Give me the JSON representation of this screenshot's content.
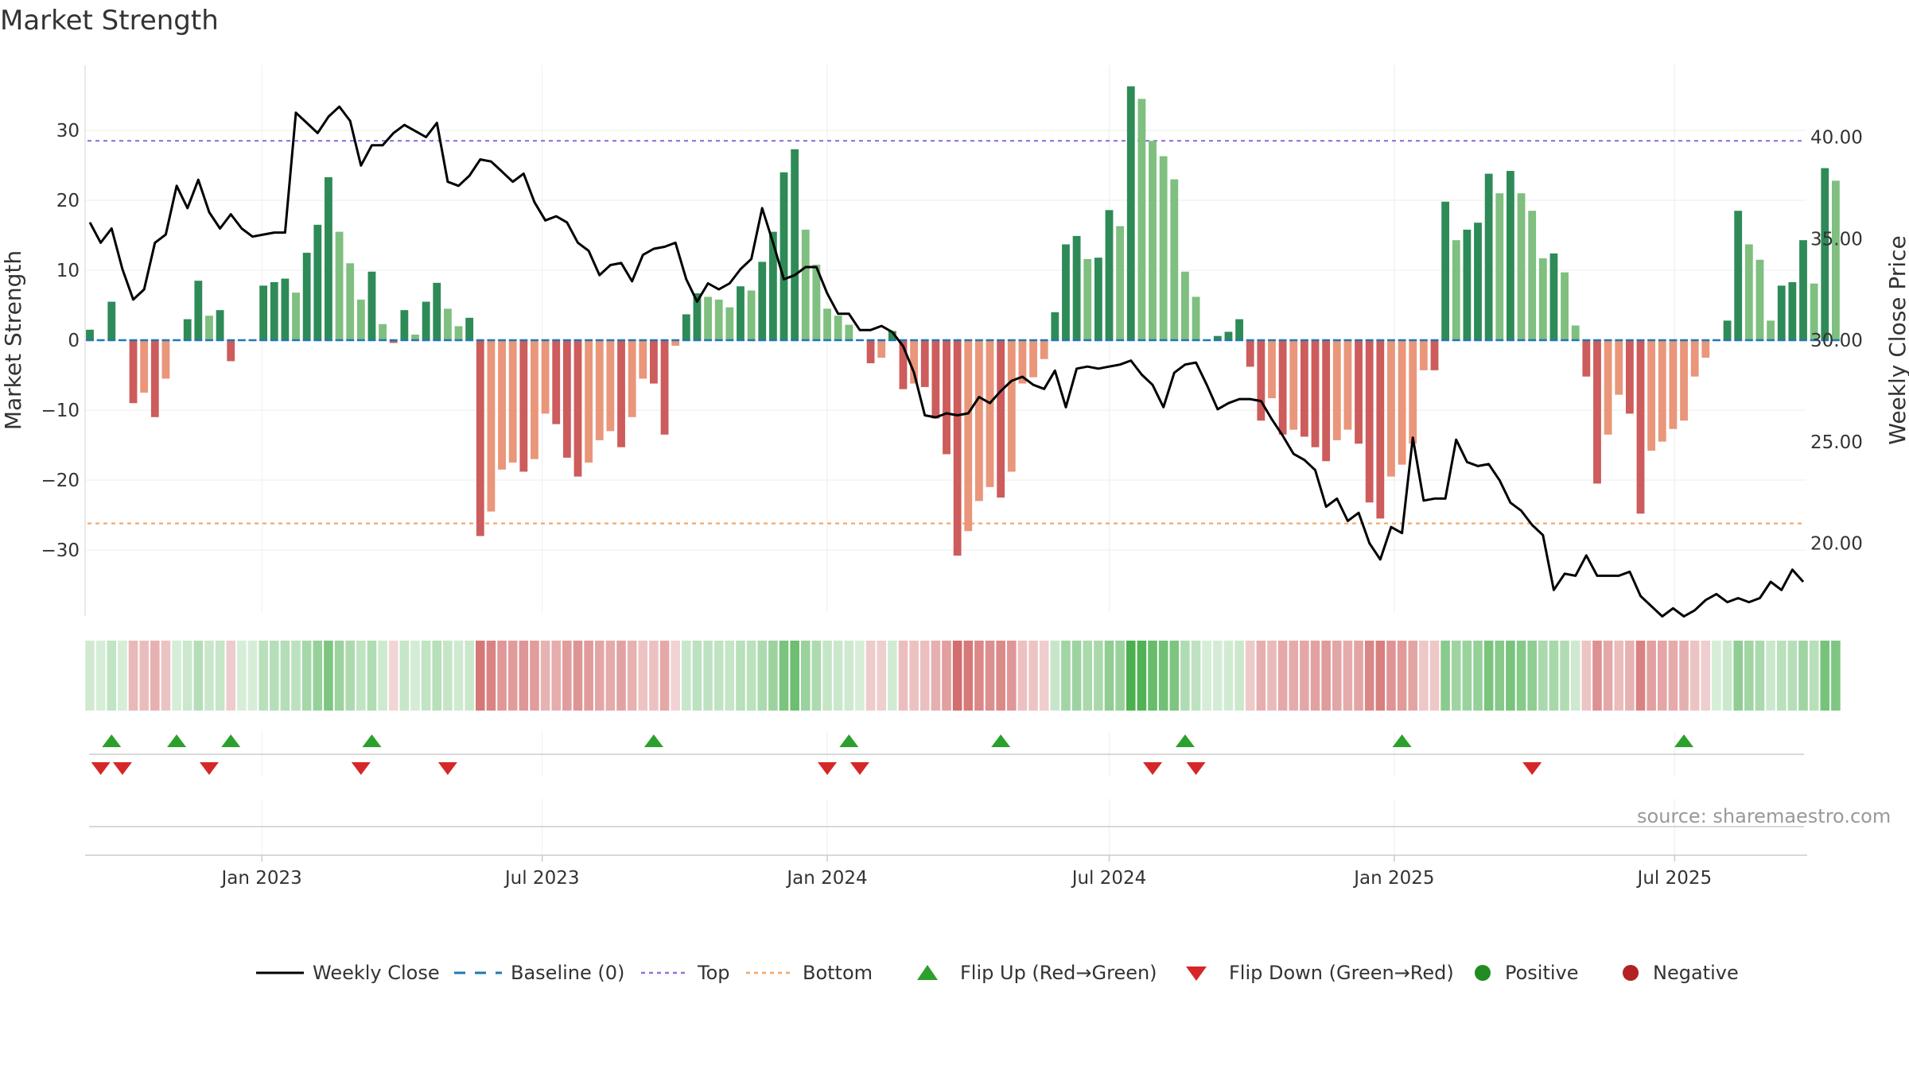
{
  "title": "Market Strength",
  "source_note": "source: sharemaestro.com",
  "colors": {
    "strong_green": "#2e8b57",
    "light_green": "#7fbf7f",
    "strong_red": "#cd5c5c",
    "light_red": "#e9967a",
    "baseline": "#1f77b4",
    "top": "#9370db",
    "bottom": "#f4a460",
    "close": "#000000",
    "flip_up": "#2ca02c",
    "flip_down": "#d62728",
    "positive": "#228b22",
    "negative": "#b22222"
  },
  "chart_data": {
    "type": "bar",
    "title": "Market Strength",
    "x_range": [
      "2022-09-12",
      "2025-09-22"
    ],
    "x_ticks": [
      "Jan 2023",
      "Jul 2023",
      "Jan 2024",
      "Jul 2024",
      "Jan 2025",
      "Jul 2025"
    ],
    "ylabel": "Market Strength",
    "y2label": "Weekly Close Price",
    "ylim": [
      -39,
      39
    ],
    "y_ticks": [
      30,
      20,
      10,
      0,
      -10,
      -20,
      -30
    ],
    "y_tick_labels": [
      "30",
      "20",
      "10",
      "0",
      "−10",
      "−20",
      "−30"
    ],
    "y2lim": [
      15.3,
      43.0
    ],
    "y2_ticks": [
      "40.00",
      "35.00",
      "30.00",
      "25.00",
      "20.00"
    ],
    "top_level": 28.5,
    "bottom_level": -26.2,
    "weeks": 159,
    "strength": [
      1.5,
      0,
      5.5,
      0,
      -9,
      -7.5,
      -11,
      -5.5,
      0,
      3,
      8.5,
      3.5,
      4.3,
      -3,
      0,
      0,
      7.8,
      8.3,
      8.8,
      6.8,
      12.5,
      16.5,
      23.3,
      15.5,
      11,
      5.8,
      9.8,
      2.3,
      -0.4,
      4.3,
      0.8,
      5.5,
      8.2,
      4.5,
      2,
      3.2,
      -28,
      -24.5,
      -18.5,
      -17.5,
      -18.8,
      -17,
      -10.5,
      -12,
      -16.8,
      -19.5,
      -17.5,
      -14.3,
      -13,
      -15.3,
      -11,
      -5.5,
      -6.2,
      -13.5,
      -0.8,
      3.7,
      6.7,
      6.2,
      5.8,
      4.7,
      7.7,
      7.1,
      11.2,
      15.5,
      24,
      27.3,
      15.8,
      10.8,
      4.5,
      3.5,
      2.2,
      0,
      -3.3,
      -2.5,
      1.3,
      -7,
      -6.2,
      -6.7,
      -11.2,
      -16.3,
      -30.8,
      -27.3,
      -23,
      -21,
      -22.5,
      -18.8,
      -6.2,
      -5.3,
      -2.7,
      4,
      13.7,
      14.9,
      11.6,
      11.8,
      18.6,
      16.3,
      36.3,
      34.5,
      28.5,
      26.3,
      23,
      9.8,
      6.2,
      0,
      0.6,
      1.2,
      3,
      -3.8,
      -11.5,
      -8.3,
      -13.5,
      -12.8,
      -13.8,
      -15.3,
      -17.3,
      -14.3,
      -12.8,
      -14.8,
      -23.2,
      -25.5,
      -19.5,
      -17.8,
      -14.8,
      -4.3,
      -4.3,
      19.8,
      14.3,
      15.8,
      16.8,
      23.8,
      21,
      24.2,
      21,
      18.5,
      11.7,
      12.4,
      9.7,
      2.1,
      -5.2,
      -20.5,
      -13.5,
      -7.8,
      -10.5,
      -24.8,
      -15.8,
      -14.5,
      -12.7,
      -11.5,
      -5.2,
      -2.5,
      0,
      2.8,
      18.5,
      13.7,
      11.5,
      2.8,
      7.8,
      8.3,
      14.3,
      8.1,
      24.6,
      22.8
    ],
    "weekly_close": [
      35.8,
      34.8,
      35.5,
      33.5,
      32.0,
      32.5,
      34.8,
      35.2,
      37.6,
      36.5,
      37.9,
      36.3,
      35.5,
      36.2,
      35.5,
      35.1,
      35.2,
      35.3,
      35.3,
      41.2,
      40.7,
      40.2,
      41.0,
      41.5,
      40.8,
      38.6,
      39.6,
      39.6,
      40.2,
      40.6,
      40.3,
      40.0,
      40.7,
      37.8,
      37.6,
      38.1,
      38.9,
      38.8,
      38.3,
      37.8,
      38.2,
      36.8,
      35.9,
      36.1,
      35.8,
      34.8,
      34.4,
      33.2,
      33.7,
      33.8,
      32.9,
      34.2,
      34.5,
      34.6,
      34.8,
      33.0,
      31.9,
      32.8,
      32.5,
      32.8,
      33.5,
      34.0,
      36.5,
      34.8,
      33.0,
      33.2,
      33.6,
      33.6,
      32.3,
      31.3,
      31.3,
      30.5,
      30.5,
      30.7,
      30.4,
      29.7,
      28.4,
      26.3,
      26.2,
      26.4,
      26.3,
      26.4,
      27.2,
      26.9,
      27.5,
      28.0,
      28.2,
      27.8,
      27.6,
      28.5,
      26.7,
      28.6,
      28.7,
      28.6,
      28.7,
      28.8,
      29.0,
      28.3,
      27.8,
      26.7,
      28.4,
      28.8,
      28.9,
      27.8,
      26.6,
      26.9,
      27.1,
      27.1,
      27.0,
      26.1,
      25.3,
      24.4,
      24.1,
      23.6,
      21.8,
      22.2,
      21.1,
      21.5,
      20.0,
      19.2,
      20.8,
      20.5,
      25.2,
      22.1,
      22.2,
      22.2,
      25.1,
      24.0,
      23.8,
      23.9,
      23.1,
      22.0,
      21.6,
      20.9,
      20.4,
      17.7,
      18.5,
      18.4,
      19.4,
      18.4,
      18.4,
      18.4,
      18.6,
      17.4,
      16.9,
      16.4,
      16.8,
      16.4,
      16.7,
      17.2,
      17.5,
      17.1,
      17.3,
      17.1,
      17.3,
      18.1,
      17.7,
      18.7,
      18.1
    ],
    "flip_up_weeks": [
      2,
      8,
      13,
      26,
      52,
      70,
      84,
      101,
      121,
      147
    ],
    "flip_down_weeks": [
      1,
      3,
      11,
      25,
      33,
      68,
      71,
      98,
      102,
      133
    ],
    "legend": [
      {
        "label": "Weekly Close",
        "icon": "solid-line"
      },
      {
        "label": "Baseline (0)",
        "icon": "dashed-line"
      },
      {
        "label": "Top",
        "icon": "dotted-line"
      },
      {
        "label": "Bottom",
        "icon": "dotted-line"
      },
      {
        "label": "Flip Up (Red→Green)",
        "icon": "triangle-up"
      },
      {
        "label": "Flip Down (Green→Red)",
        "icon": "triangle-down"
      },
      {
        "label": "Positive",
        "icon": "circle"
      },
      {
        "label": "Negative",
        "icon": "circle"
      }
    ]
  }
}
